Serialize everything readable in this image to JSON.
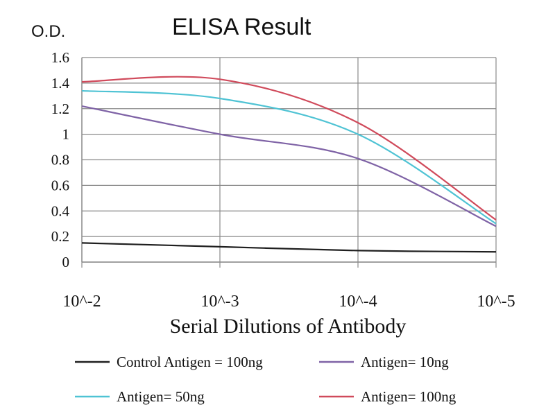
{
  "chart_data": {
    "type": "line",
    "title": "ELISA Result",
    "ylabel": "O.D.",
    "xlabel": "Serial Dilutions of Antibody",
    "categories": [
      "10^-2",
      "10^-3",
      "10^-4",
      "10^-5"
    ],
    "ylim": [
      0,
      1.6
    ],
    "yticks": [
      "0",
      "0.2",
      "0.4",
      "0.6",
      "0.8",
      "1",
      "1.2",
      "1.4",
      "1.6"
    ],
    "grid": true,
    "legend_position": "bottom",
    "series": [
      {
        "name": "Control Antigen = 100ng",
        "color": "#1f1f1f",
        "values": [
          0.15,
          0.12,
          0.09,
          0.08
        ]
      },
      {
        "name": "Antigen= 10ng",
        "color": "#7f63a6",
        "values": [
          1.22,
          1.0,
          0.81,
          0.28
        ]
      },
      {
        "name": "Antigen= 50ng",
        "color": "#4fc3d4",
        "values": [
          1.34,
          1.28,
          1.0,
          0.3
        ]
      },
      {
        "name": "Antigen= 100ng",
        "color": "#d04a5b",
        "values": [
          1.41,
          1.43,
          1.09,
          0.33
        ]
      }
    ]
  }
}
